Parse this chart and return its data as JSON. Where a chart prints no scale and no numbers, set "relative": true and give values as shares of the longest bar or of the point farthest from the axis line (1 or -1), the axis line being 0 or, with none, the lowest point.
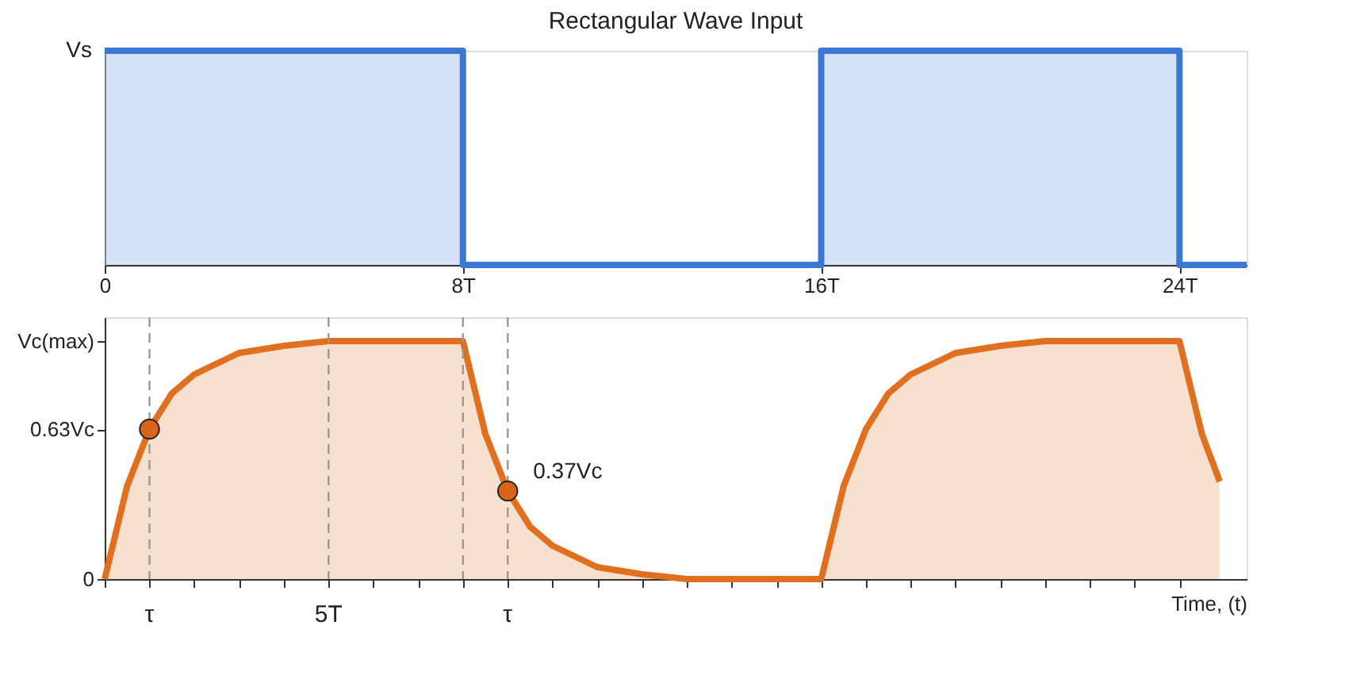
{
  "chart_data": [
    {
      "type": "step",
      "title": "Rectangular Wave Input",
      "grid": false,
      "xlim": [
        0,
        25.5
      ],
      "relative": true,
      "xticks": [
        {
          "value": 0,
          "label": "0"
        },
        {
          "value": 8,
          "label": "8T"
        },
        {
          "value": 16,
          "label": "16T"
        },
        {
          "value": 24,
          "label": "24T"
        }
      ],
      "annotations": [
        {
          "text": "Vs",
          "x": 0,
          "y": 1
        }
      ],
      "series": [
        {
          "color": "#3a78d4",
          "x": [
            0,
            8,
            16,
            24,
            25.5
          ],
          "values": [
            1,
            0,
            1,
            0,
            0
          ]
        }
      ]
    },
    {
      "type": "area",
      "xlabel": "Time, (t)",
      "grid": false,
      "tick_labels": "y",
      "xlim": [
        0,
        25.5
      ],
      "ylim": [
        0,
        1.1
      ],
      "xticks": [
        {
          "value": 0,
          "label": null
        },
        {
          "value": 1,
          "label": null
        },
        {
          "value": 2,
          "label": null
        },
        {
          "value": 3,
          "label": null
        },
        {
          "value": 4,
          "label": null
        },
        {
          "value": 5,
          "label": null
        },
        {
          "value": 6,
          "label": null
        },
        {
          "value": 7,
          "label": null
        },
        {
          "value": 8,
          "label": null
        },
        {
          "value": 9,
          "label": null
        },
        {
          "value": 10,
          "label": null
        },
        {
          "value": 11,
          "label": null
        },
        {
          "value": 12,
          "label": null
        },
        {
          "value": 13,
          "label": null
        },
        {
          "value": 14,
          "label": null
        },
        {
          "value": 15,
          "label": null
        },
        {
          "value": 16,
          "label": null
        },
        {
          "value": 17,
          "label": null
        },
        {
          "value": 18,
          "label": null
        },
        {
          "value": 19,
          "label": null
        },
        {
          "value": 20,
          "label": null
        },
        {
          "value": 21,
          "label": null
        },
        {
          "value": 22,
          "label": null
        },
        {
          "value": 23,
          "label": null
        },
        {
          "value": 24,
          "label": null
        }
      ],
      "yticks": [
        {
          "value": 0,
          "label": "0"
        },
        {
          "value": 0.63,
          "label": "0.63Vc"
        },
        {
          "value": 1,
          "label": "Vc(max)"
        }
      ],
      "series": [
        {
          "color": "#e07020",
          "x": [
            0,
            0.5,
            1,
            1.5,
            2,
            3,
            4,
            5,
            8,
            8.5,
            9,
            9.5,
            10,
            11,
            12,
            13,
            16,
            16.5,
            17,
            17.5,
            18,
            19,
            20,
            21,
            24,
            24.5,
            24.9
          ],
          "values": [
            0,
            0.39,
            0.63,
            0.78,
            0.86,
            0.95,
            0.98,
            1,
            1,
            0.61,
            0.37,
            0.22,
            0.14,
            0.05,
            0.02,
            0,
            0,
            0.39,
            0.63,
            0.78,
            0.86,
            0.95,
            0.98,
            1,
            1,
            0.61,
            0.41
          ]
        },
        {
          "type": "scatter",
          "marker": "circle",
          "color": "#d9651a",
          "x": [
            1,
            9
          ],
          "values": [
            0.63,
            0.37
          ]
        }
      ],
      "ref_lines": [
        {
          "axis": "x",
          "value": 1,
          "label": "τ",
          "color": "#999999",
          "line_style": "dashed"
        },
        {
          "axis": "x",
          "value": 5,
          "label": "5T",
          "color": "#999999",
          "line_style": "dashed"
        },
        {
          "axis": "x",
          "value": 8,
          "color": "#999999",
          "line_style": "dashed"
        },
        {
          "axis": "x",
          "value": 9,
          "label": "τ",
          "color": "#999999",
          "line_style": "dashed"
        }
      ],
      "annotations": [
        {
          "text": "0.37Vc",
          "x": 9,
          "y": 0.37
        }
      ]
    }
  ]
}
